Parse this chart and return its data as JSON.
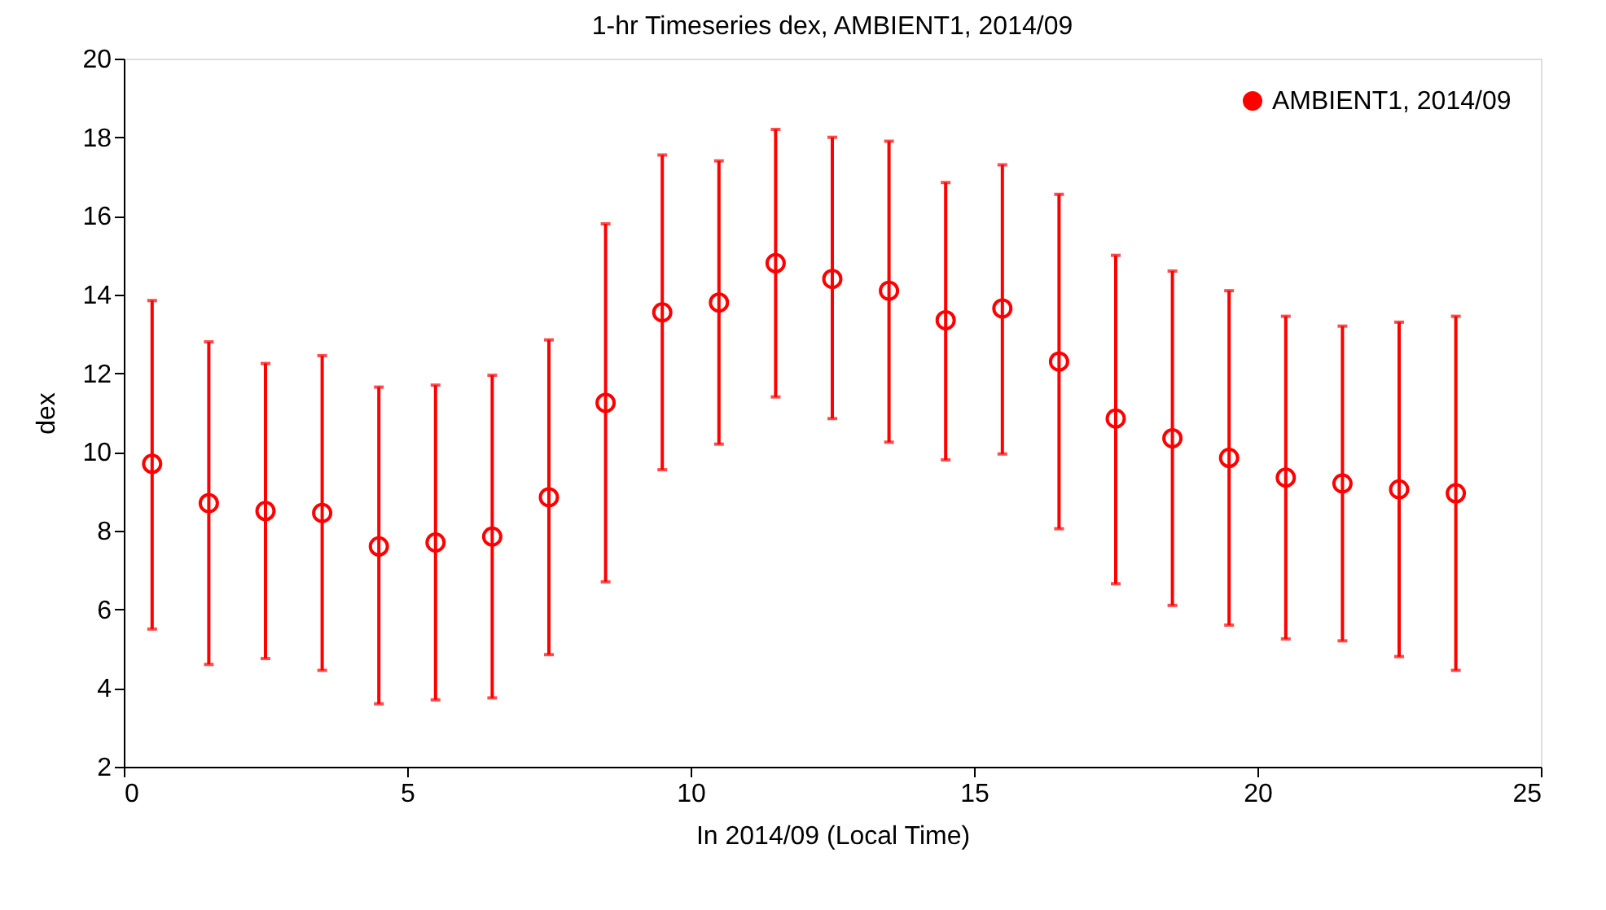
{
  "chart_data": {
    "type": "scatter",
    "title": "1-hr Timeseries dex, AMBIENT1, 2014/09",
    "xlabel": "In 2014/09 (Local Time)",
    "ylabel": "dex",
    "x": [
      0.5,
      1.5,
      2.5,
      3.5,
      4.5,
      5.5,
      6.5,
      7.5,
      8.5,
      9.5,
      10.5,
      11.5,
      12.5,
      13.5,
      14.5,
      15.5,
      16.5,
      17.5,
      18.5,
      19.5,
      20.5,
      21.5,
      22.5,
      23.5
    ],
    "series": [
      {
        "name": "AMBIENT1, 2014/09",
        "color": "#ff0000",
        "values": [
          9.7,
          8.7,
          8.5,
          8.45,
          7.6,
          7.7,
          7.85,
          8.85,
          11.25,
          13.55,
          13.8,
          14.8,
          14.4,
          14.1,
          13.35,
          13.65,
          12.3,
          10.85,
          10.35,
          9.85,
          9.35,
          9.2,
          9.05,
          8.95
        ],
        "errors": [
          [
            5.5,
            13.85
          ],
          [
            4.6,
            12.8
          ],
          [
            4.75,
            12.25
          ],
          [
            4.45,
            12.45
          ],
          [
            3.6,
            11.65
          ],
          [
            3.7,
            11.7
          ],
          [
            3.75,
            11.95
          ],
          [
            4.85,
            12.85
          ],
          [
            6.7,
            15.8
          ],
          [
            9.55,
            17.55
          ],
          [
            10.2,
            17.4
          ],
          [
            11.4,
            18.2
          ],
          [
            10.85,
            18.0
          ],
          [
            10.25,
            17.9
          ],
          [
            9.8,
            16.85
          ],
          [
            9.95,
            17.3
          ],
          [
            8.05,
            16.55
          ],
          [
            6.65,
            15.0
          ],
          [
            6.1,
            14.6
          ],
          [
            5.6,
            14.1
          ],
          [
            5.25,
            13.45
          ],
          [
            5.2,
            13.2
          ],
          [
            4.8,
            13.3
          ],
          [
            4.45,
            13.45
          ]
        ]
      }
    ],
    "xlim": [
      0,
      25
    ],
    "xticks": [
      0,
      5,
      10,
      15,
      20,
      25
    ],
    "ylim": [
      2,
      20
    ],
    "yticks": [
      2,
      4,
      6,
      8,
      10,
      12,
      14,
      16,
      18,
      20
    ],
    "marker": "circle",
    "legend": "top right",
    "grid": false
  }
}
